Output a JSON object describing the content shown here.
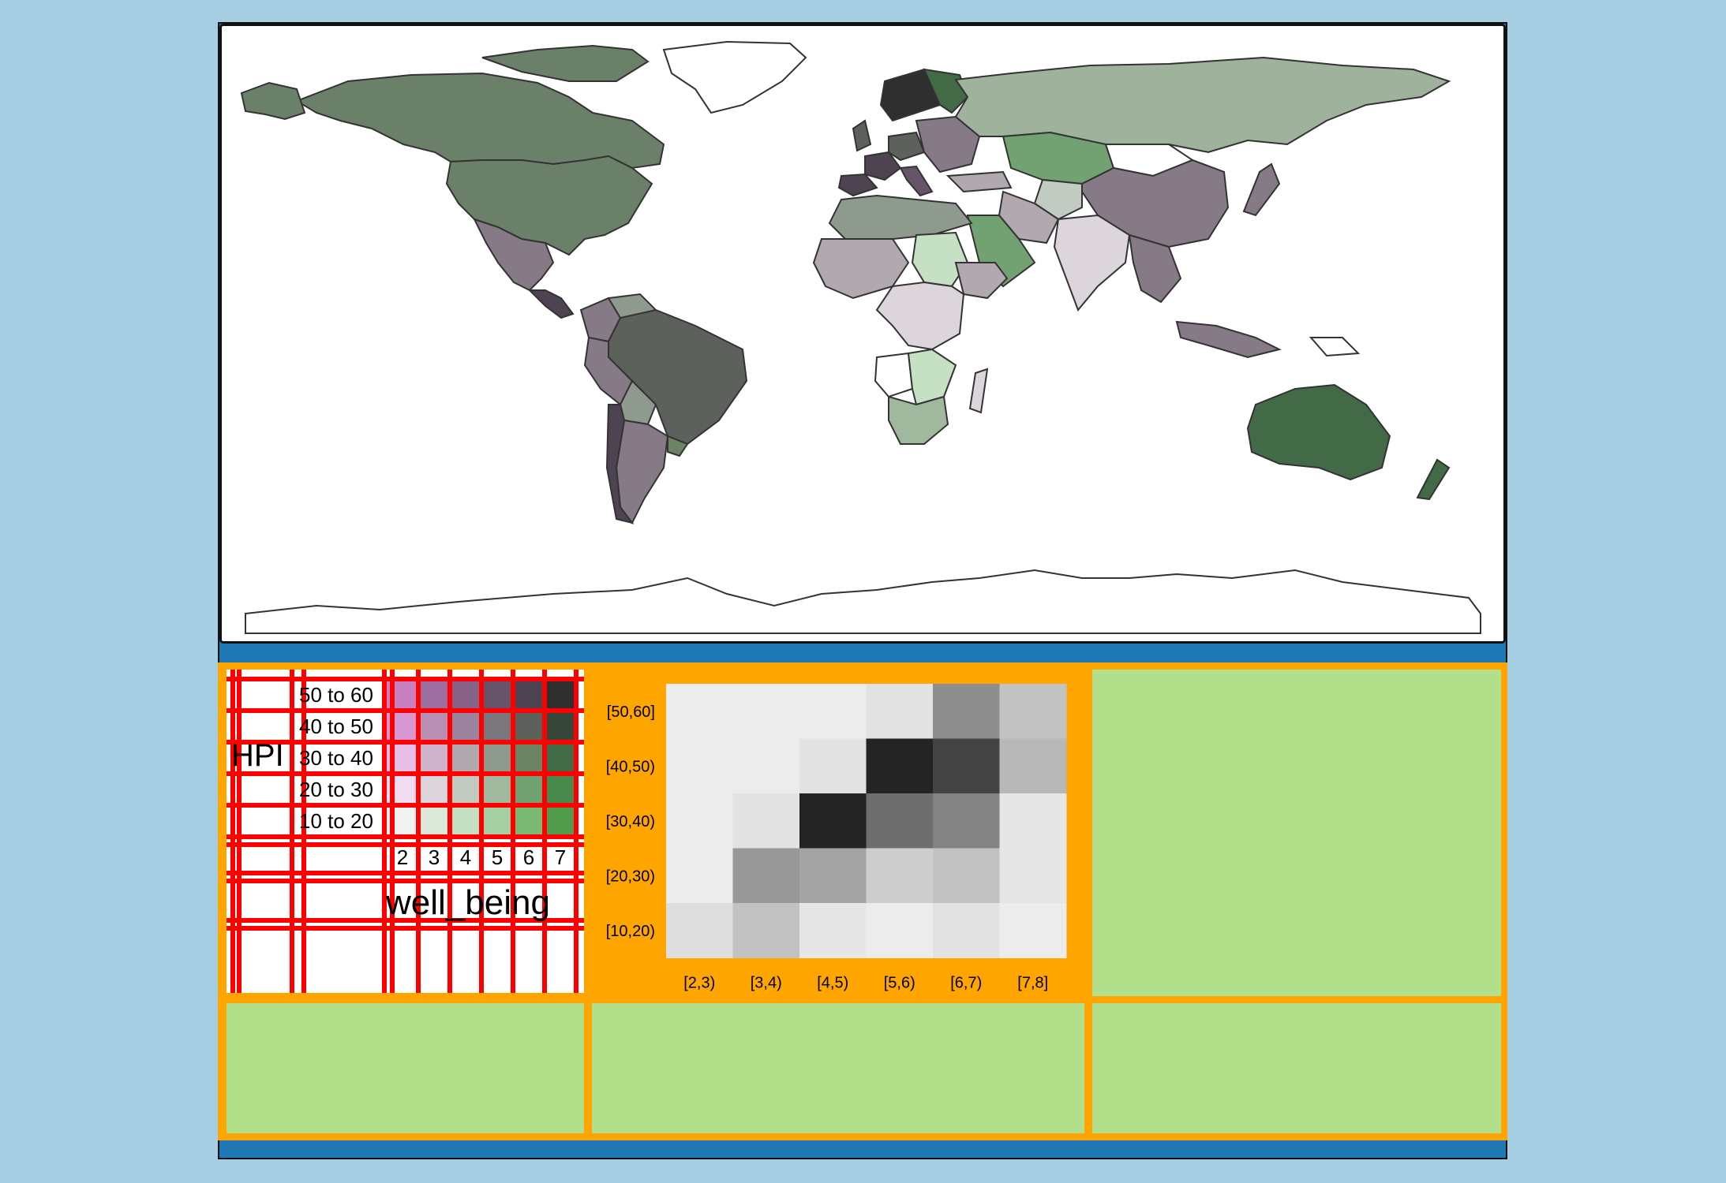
{
  "legend": {
    "y_title": "HPI",
    "x_title": "well_being",
    "row_labels": [
      "50 to 60",
      "40 to 50",
      "30 to 40",
      "20 to 30",
      "10 to 20"
    ],
    "col_labels": [
      "2",
      "3",
      "4",
      "5",
      "6",
      "7"
    ],
    "colors": [
      [
        "#c77fc0",
        "#9f6ea0",
        "#866386",
        "#685469",
        "#4e4350",
        "#2f2f2f"
      ],
      [
        "#d896d3",
        "#b98fb4",
        "#9c84a0",
        "#7a767b",
        "#5c625b",
        "#36473a"
      ],
      [
        "#e8bde6",
        "#cdb3cc",
        "#b1a8b0",
        "#8f9a8f",
        "#6b8466",
        "#436a46"
      ],
      [
        "#f3dbf1",
        "#dcd6dc",
        "#c1cbc1",
        "#9fb89e",
        "#73a272",
        "#4a8a4d"
      ],
      [
        "#f2f2f2",
        "#dbe8da",
        "#c6e0c4",
        "#a6d0a3",
        "#7bb874",
        "#519c4c"
      ]
    ]
  },
  "chart_data": {
    "type": "heatmap",
    "x_categories": [
      "[2,3)",
      "[3,4)",
      "[4,5)",
      "[5,6)",
      "[6,7)",
      "[7,8]"
    ],
    "y_categories": [
      "[50,60]",
      "[40,50)",
      "[30,40)",
      "[20,30)",
      "[10,20)"
    ],
    "values": [
      [
        0.05,
        0.05,
        0.05,
        0.1,
        0.5,
        0.25
      ],
      [
        0.05,
        0.05,
        0.1,
        1.0,
        0.85,
        0.3
      ],
      [
        0.05,
        0.1,
        1.0,
        0.65,
        0.55,
        0.08
      ],
      [
        0.05,
        0.45,
        0.4,
        0.2,
        0.25,
        0.08
      ],
      [
        0.12,
        0.25,
        0.08,
        0.05,
        0.1,
        0.05
      ]
    ]
  },
  "map": {
    "ocean_color": "#ffffff",
    "border_color": "#333333"
  }
}
